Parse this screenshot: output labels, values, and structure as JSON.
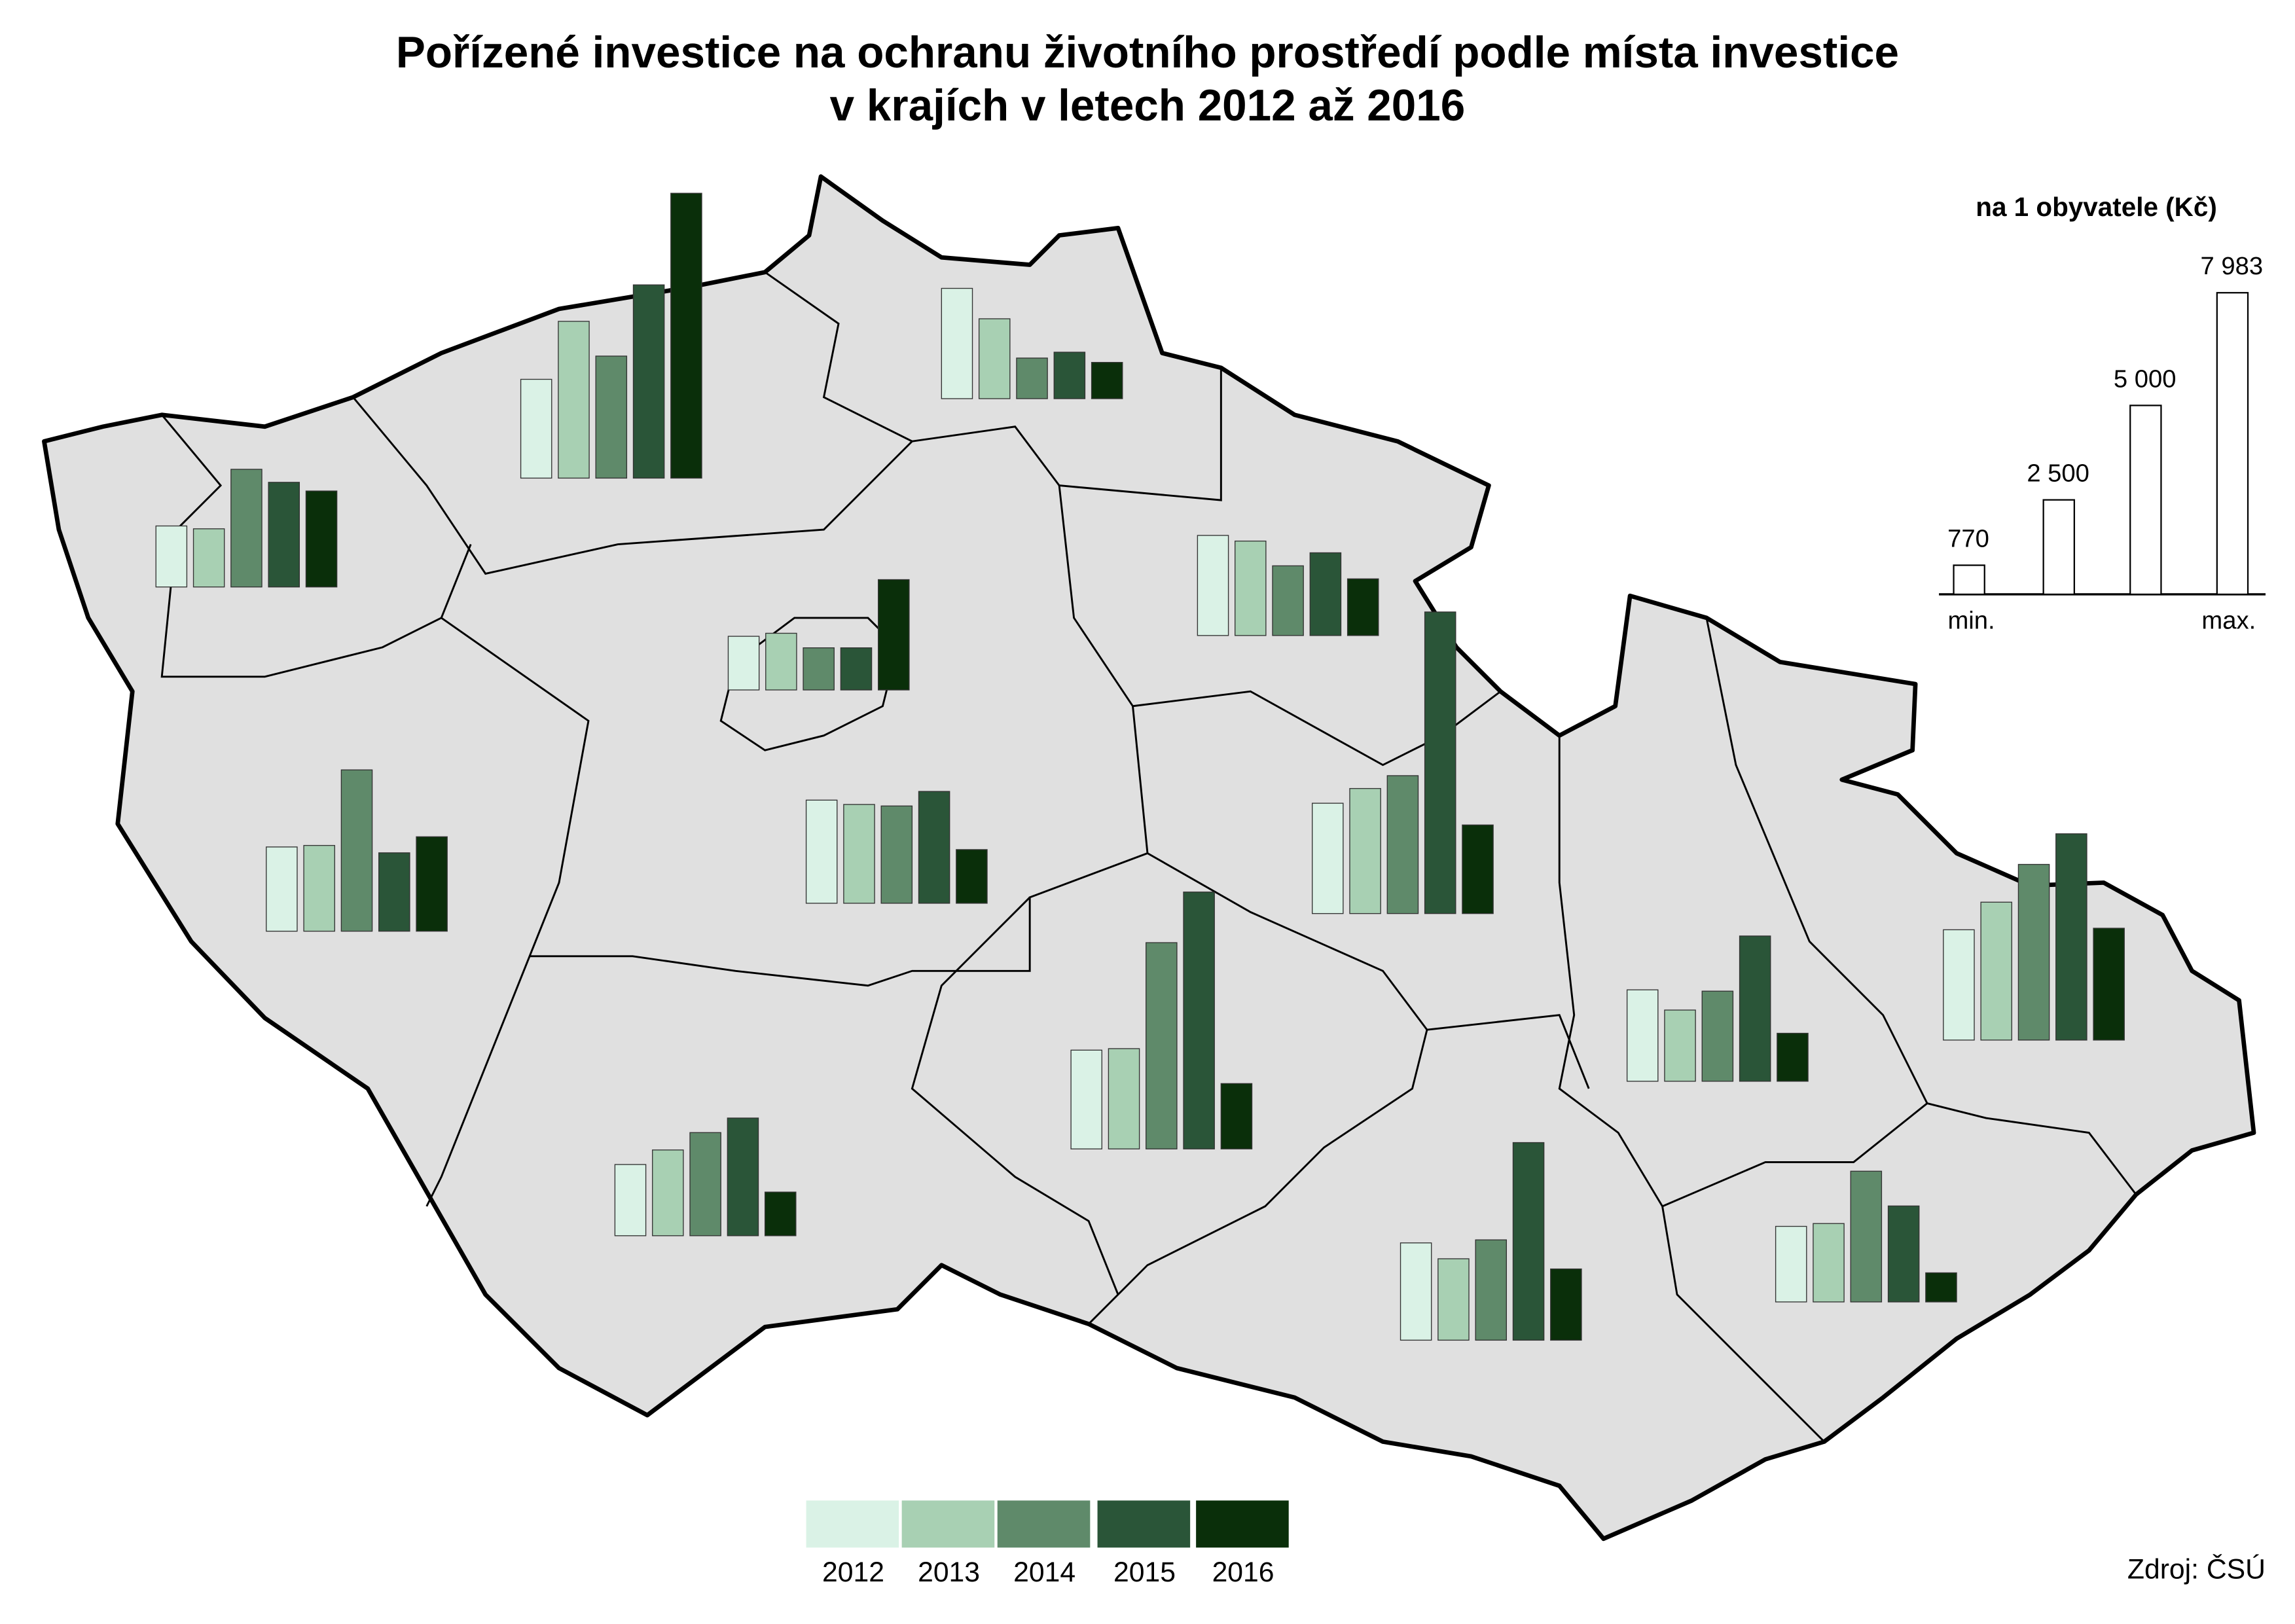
{
  "chart_data": {
    "type": "map-bar",
    "title": [
      "Pořízené investice na ochranu životního prostředí podle místa investice",
      "v krajích v letech 2012 až 2016"
    ],
    "categories": [
      "2012",
      "2013",
      "2014",
      "2015",
      "2016"
    ],
    "colors": [
      "#daf2e6",
      "#a8d0b3",
      "#5f8a6a",
      "#2a5538",
      "#0a2f0a"
    ],
    "regions": [
      {
        "values": [
          1615,
          1540,
          3115,
          2770,
          2540
        ]
      },
      {
        "values": [
          2615,
          4150,
          3230,
          5115,
          7540
        ]
      },
      {
        "values": [
          2920,
          2115,
          1075,
          1230,
          960
        ]
      },
      {
        "values": [
          1420,
          1500,
          1115,
          1115,
          2920
        ]
      },
      {
        "values": [
          2650,
          2500,
          1845,
          2190,
          1500
        ]
      },
      {
        "values": [
          2230,
          2270,
          4270,
          2075,
          2500
        ]
      },
      {
        "values": [
          2730,
          2615,
          2575,
          2960,
          1420
        ]
      },
      {
        "values": [
          2920,
          3310,
          3650,
          7983,
          2345
        ]
      },
      {
        "values": [
          2615,
          2655,
          5460,
          6800,
          1730
        ]
      },
      {
        "values": [
          1885,
          2270,
          2730,
          3115,
          1155
        ]
      },
      {
        "values": [
          2575,
          2155,
          2655,
          5230,
          1885
        ]
      },
      {
        "values": [
          2420,
          1885,
          2385,
          3845,
          1270
        ]
      },
      {
        "values": [
          2920,
          3650,
          4650,
          5460,
          2960
        ]
      },
      {
        "values": [
          2000,
          2075,
          3460,
          2540,
          770
        ]
      }
    ],
    "scale": {
      "title": "na 1 obyvatele (Kč)",
      "values": [
        770,
        2500,
        5000,
        7983
      ],
      "value_labels": [
        "770",
        "2 500",
        "5 000",
        "7 983"
      ],
      "min_label": "min.",
      "max_label": "max."
    },
    "source": "Zdroj: ČSÚ"
  }
}
